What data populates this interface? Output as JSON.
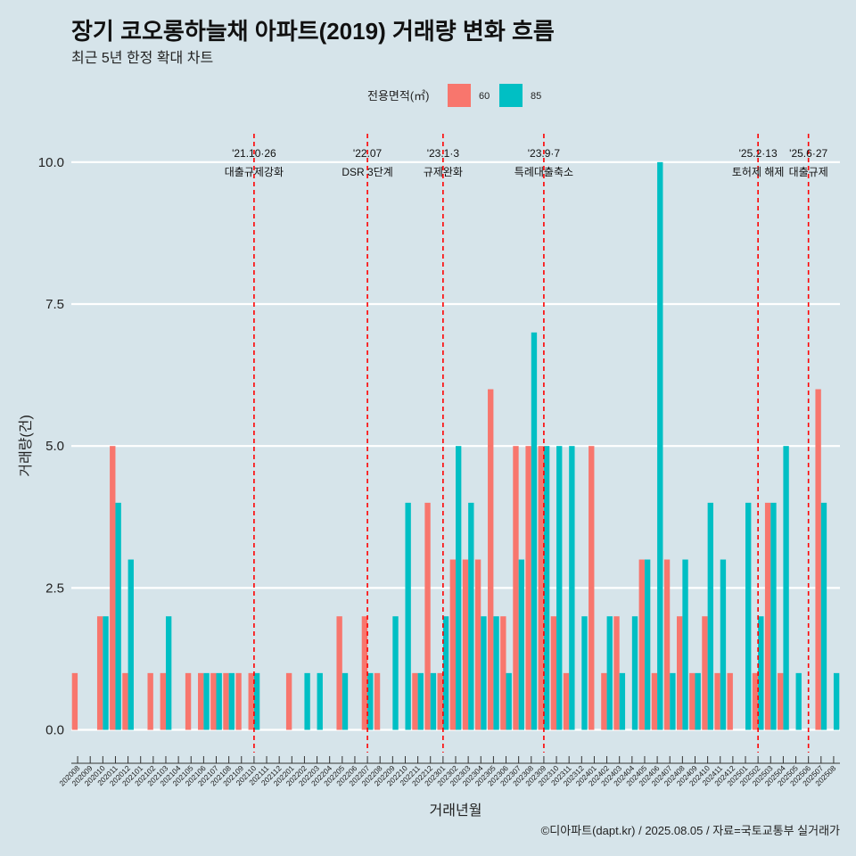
{
  "chart_data": {
    "type": "bar",
    "title": "장기 코오롱하늘채 아파트(2019) 거래량 변화 흐름",
    "subtitle": "최근 5년 한정 확대 차트",
    "xlabel": "거래년월",
    "ylabel": "거래량(건)",
    "caption": "©디아파트(dapt.kr) / 2025.08.05 / 자료=국토교통부 실거래가",
    "legend": {
      "title": "전용면적(㎡)",
      "position": "top",
      "entries": [
        {
          "name": "60",
          "color": "#f8766d"
        },
        {
          "name": "85",
          "color": "#00bfc4"
        }
      ]
    },
    "ylim": [
      -0.4,
      10.5
    ],
    "yticks": [
      0,
      2.5,
      5,
      7.5,
      10
    ],
    "ytick_labels": [
      "0.0",
      "2.5",
      "5.0",
      "7.5",
      "10.0"
    ],
    "categories": [
      "202008",
      "202009",
      "202010",
      "202011",
      "202012",
      "202101",
      "202102",
      "202103",
      "202104",
      "202105",
      "202106",
      "202107",
      "202108",
      "202109",
      "202110",
      "202111",
      "202112",
      "202201",
      "202202",
      "202203",
      "202204",
      "202205",
      "202206",
      "202207",
      "202208",
      "202209",
      "202210",
      "202211",
      "202212",
      "202301",
      "202302",
      "202303",
      "202304",
      "202305",
      "202306",
      "202307",
      "202308",
      "202309",
      "202310",
      "202311",
      "202312",
      "202401",
      "202402",
      "202403",
      "202404",
      "202405",
      "202406",
      "202407",
      "202408",
      "202409",
      "202410",
      "202411",
      "202412",
      "202501",
      "202502",
      "202503",
      "202504",
      "202505",
      "202506",
      "202507",
      "202508"
    ],
    "series": [
      {
        "name": "60",
        "color": "#f8766d",
        "values": [
          1,
          0,
          2,
          5,
          1,
          0,
          1,
          1,
          0,
          1,
          1,
          1,
          1,
          1,
          1,
          0,
          0,
          1,
          0,
          0,
          0,
          2,
          0,
          2,
          1,
          0,
          0,
          1,
          4,
          1,
          3,
          3,
          3,
          6,
          2,
          5,
          5,
          5,
          2,
          1,
          0,
          5,
          1,
          2,
          0,
          3,
          1,
          3,
          2,
          1,
          2,
          1,
          1,
          0,
          1,
          4,
          1,
          0,
          0,
          6,
          0
        ]
      },
      {
        "name": "85",
        "color": "#00bfc4",
        "values": [
          0,
          0,
          2,
          4,
          3,
          0,
          0,
          2,
          0,
          0,
          1,
          1,
          1,
          0,
          1,
          0,
          0,
          0,
          1,
          1,
          0,
          1,
          0,
          1,
          0,
          2,
          4,
          1,
          1,
          2,
          5,
          4,
          2,
          2,
          1,
          3,
          7,
          5,
          5,
          5,
          2,
          0,
          2,
          1,
          2,
          3,
          10,
          1,
          3,
          1,
          4,
          3,
          0,
          4,
          2,
          4,
          5,
          1,
          0,
          4,
          1
        ]
      }
    ],
    "annotations": [
      {
        "date": "202110",
        "line1": "'21.10·26",
        "line2": "대출규제강화"
      },
      {
        "date": "202207",
        "line1": "'22.07",
        "line2": "DSR 3단계"
      },
      {
        "date": "202301",
        "line1": "'23.1·3",
        "line2": "규제완화"
      },
      {
        "date": "202309",
        "line1": "'23.9·7",
        "line2": "특례대출축소"
      },
      {
        "date": "202502",
        "line1": "'25.2·13",
        "line2": "토허제 해제"
      },
      {
        "date": "202506",
        "line1": "'25.6·27",
        "line2": "대출규제"
      }
    ]
  }
}
